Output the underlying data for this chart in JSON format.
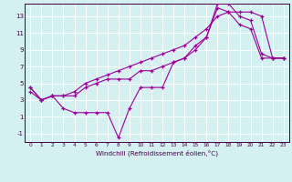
{
  "xlabel": "Windchill (Refroidissement éolien,°C)",
  "bg_color": "#d4f0f0",
  "line_color": "#990099",
  "grid_color": "#ffffff",
  "xlim": [
    -0.5,
    23.5
  ],
  "ylim": [
    -2.0,
    14.5
  ],
  "xticks": [
    0,
    1,
    2,
    3,
    4,
    5,
    6,
    7,
    8,
    9,
    10,
    11,
    12,
    13,
    14,
    15,
    16,
    17,
    18,
    19,
    20,
    21,
    22,
    23
  ],
  "yticks": [
    -1,
    1,
    3,
    5,
    7,
    9,
    11,
    13
  ],
  "line1_x": [
    0,
    1,
    2,
    3,
    4,
    5,
    6,
    7,
    8,
    9,
    10,
    11,
    12,
    13,
    14,
    15,
    16,
    17,
    18,
    19,
    20,
    21,
    22,
    23
  ],
  "line1_y": [
    4.0,
    3.0,
    3.5,
    2.0,
    1.5,
    1.5,
    1.5,
    1.5,
    -1.5,
    2.0,
    4.5,
    4.5,
    4.5,
    7.5,
    8.0,
    9.5,
    10.5,
    14.0,
    13.5,
    12.0,
    11.5,
    8.0,
    8.0,
    8.0
  ],
  "line2_x": [
    0,
    1,
    2,
    3,
    4,
    5,
    6,
    7,
    8,
    9,
    10,
    11,
    12,
    13,
    14,
    15,
    16,
    17,
    18,
    19,
    20,
    21,
    22,
    23
  ],
  "line2_y": [
    4.5,
    3.0,
    3.5,
    3.5,
    3.5,
    4.5,
    5.0,
    5.5,
    5.5,
    5.5,
    6.5,
    6.5,
    7.0,
    7.5,
    8.0,
    9.0,
    10.5,
    14.5,
    14.5,
    13.0,
    12.5,
    8.5,
    8.0,
    8.0
  ],
  "line3_x": [
    0,
    1,
    2,
    3,
    4,
    5,
    6,
    7,
    8,
    9,
    10,
    11,
    12,
    13,
    14,
    15,
    16,
    17,
    18,
    19,
    20,
    21,
    22,
    23
  ],
  "line3_y": [
    4.5,
    3.0,
    3.5,
    3.5,
    4.0,
    5.0,
    5.5,
    6.0,
    6.5,
    7.0,
    7.5,
    8.0,
    8.5,
    9.0,
    9.5,
    10.5,
    11.5,
    13.0,
    13.5,
    13.5,
    13.5,
    13.0,
    8.0,
    8.0
  ]
}
